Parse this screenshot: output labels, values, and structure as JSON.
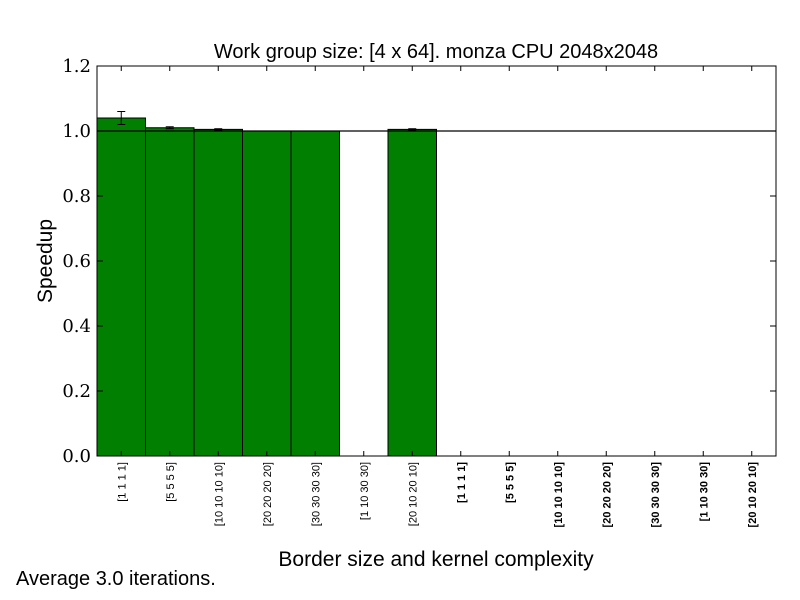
{
  "chart_data": {
    "type": "bar",
    "title": "Work group size: [4 x 64]. monza CPU 2048x2048",
    "xlabel": "Border size and kernel complexity",
    "ylabel": "Speedup",
    "ylim": [
      0.0,
      1.2
    ],
    "yticks": [
      "0.0",
      "0.2",
      "0.4",
      "0.6",
      "0.8",
      "1.0",
      "1.2"
    ],
    "reference_line": 1.0,
    "grid": false,
    "bar_color": "#007f00",
    "categories": [
      "[1 1 1 1]",
      "[5 5 5 5]",
      "[10 10 10 10]",
      "[20 20 20 20]",
      "[30 30 30 30]",
      "[1 10 30 30]",
      "[20 10 20 10]",
      "[1 1 1 1]",
      "[5 5 5 5]",
      "[10 10 10 10]",
      "[20 20 20 20]",
      "[30 30 30 30]",
      "[1 10 30 30]",
      "[20 10 20 10]"
    ],
    "bold_categories": [
      7,
      8,
      9,
      10,
      11,
      12,
      13
    ],
    "values": [
      1.04,
      1.01,
      1.005,
      1.0,
      1.0,
      null,
      1.005,
      null,
      null,
      null,
      null,
      null,
      null,
      null
    ],
    "errors": [
      0.02,
      0.003,
      0.002,
      0,
      0,
      null,
      0.002,
      null,
      null,
      null,
      null,
      null,
      null,
      null
    ]
  },
  "footnote": "Average 3.0 iterations."
}
